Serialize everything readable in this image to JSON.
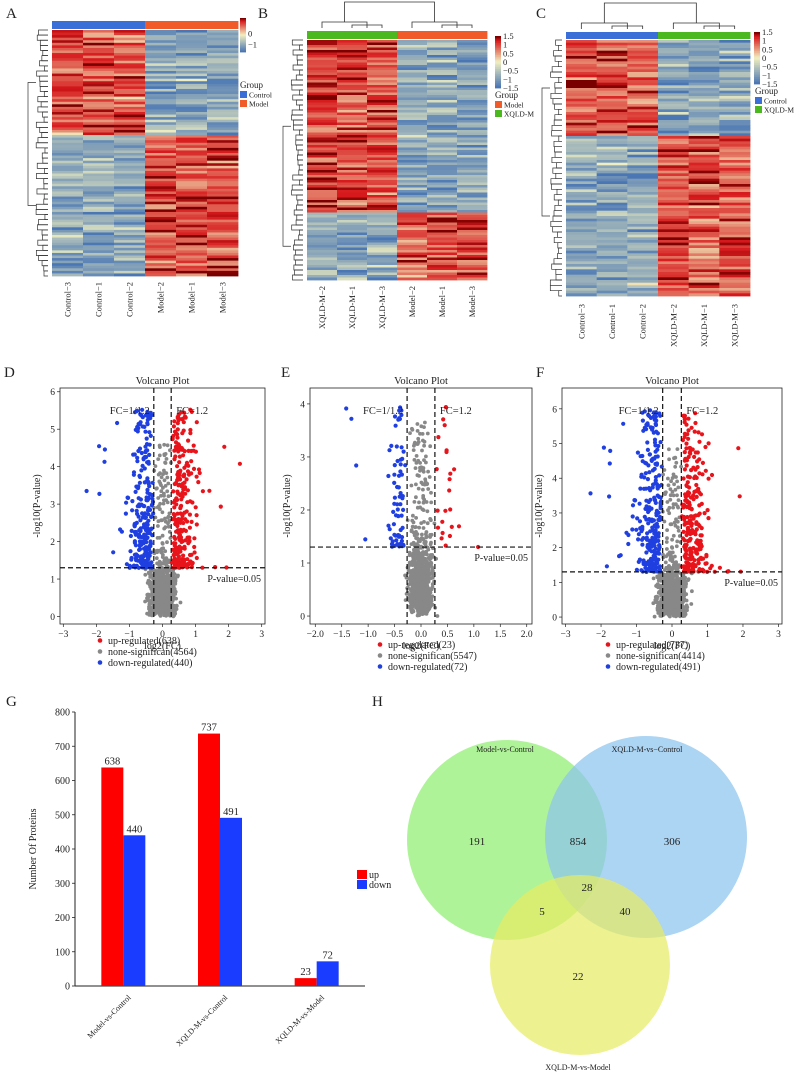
{
  "colors": {
    "heat_low": "#4a77b4",
    "heat_mid": "#f2f0c0",
    "heat_high": "#d7191c",
    "heat_max": "#7a0000",
    "control": "#3b6fd8",
    "model": "#f15a29",
    "xqld": "#4cb81f",
    "up": "#e8141b",
    "none": "#888888",
    "down": "#1f3fe0",
    "bar_up": "#ff0000",
    "bar_down": "#1a3cff",
    "venn_a": "#90ee70",
    "venn_b": "#8cc3ee",
    "venn_c": "#e6ec64"
  },
  "panels": {
    "A": {
      "letter": "A"
    },
    "B": {
      "letter": "B"
    },
    "C": {
      "letter": "C"
    },
    "D": {
      "letter": "D"
    },
    "E": {
      "letter": "E"
    },
    "F": {
      "letter": "F"
    },
    "G": {
      "letter": "G"
    },
    "H": {
      "letter": "H"
    }
  },
  "chart_data": [
    {
      "panel": "A",
      "type": "heatmap",
      "samples": [
        "Control−3",
        "Control−1",
        "Control−2",
        "Model−2",
        "Model−1",
        "Model−3"
      ],
      "groups": [
        "Control",
        "Control",
        "Control",
        "Model",
        "Model",
        "Model"
      ],
      "scale_ticks": [
        "0",
        "−1"
      ],
      "legend_title": "Group",
      "legend_entries": [
        {
          "label": "Control",
          "color": "control"
        },
        {
          "label": "Model",
          "color": "model"
        }
      ],
      "split": 0.43
    },
    {
      "panel": "B",
      "type": "heatmap",
      "samples": [
        "XQLD-M−2",
        "XQLD-M−1",
        "XQLD-M−3",
        "Model−2",
        "Model−1",
        "Model−3"
      ],
      "groups": [
        "XQLD",
        "XQLD",
        "XQLD",
        "Model",
        "Model",
        "Model"
      ],
      "scale_ticks": [
        "1.5",
        "1",
        "0.5",
        "0",
        "−0.5",
        "−1",
        "−1.5"
      ],
      "legend_title": "Group",
      "legend_entries": [
        {
          "label": "Model",
          "color": "model"
        },
        {
          "label": "XQLD-M",
          "color": "xqld"
        }
      ],
      "split": 0.72
    },
    {
      "panel": "C",
      "type": "heatmap",
      "samples": [
        "Control−3",
        "Control−1",
        "Control−2",
        "XQLD-M−2",
        "XQLD-M−1",
        "XQLD-M−3"
      ],
      "groups": [
        "Control",
        "Control",
        "Control",
        "XQLD",
        "XQLD",
        "XQLD"
      ],
      "scale_ticks": [
        "1.5",
        "1",
        "0.5",
        "0",
        "−0.5",
        "−1",
        "−1.5"
      ],
      "legend_title": "Group",
      "legend_entries": [
        {
          "label": "Control",
          "color": "control"
        },
        {
          "label": "XQLD-M",
          "color": "xqld"
        }
      ],
      "split": 0.38
    },
    {
      "panel": "D",
      "type": "scatter",
      "title": "Volcano Plot",
      "xlabel": "log2(FC)",
      "ylabel": "-log10(P-value)",
      "xlim": [
        -3.1,
        3.1
      ],
      "ylim": [
        -0.2,
        6.1
      ],
      "xticks": [
        -3,
        -2,
        -1,
        0,
        1,
        2,
        3
      ],
      "yticks": [
        0,
        1,
        2,
        3,
        4,
        5,
        6
      ],
      "fc_lines": [
        -0.263,
        0.263
      ],
      "p_line": 1.301,
      "fc_low_label": "FC=1/1.2",
      "fc_high_label": "FC=1.2",
      "p_label": "P-value=0.05",
      "series": [
        {
          "name": "up-regulated",
          "count": 638
        },
        {
          "name": "none-significan",
          "count": 4564
        },
        {
          "name": "down-regulated",
          "count": 440
        }
      ],
      "legend_labels": [
        "up-regulated(638)",
        "none-significan(4564)",
        "down-regulated(440)"
      ],
      "spread": 1.0
    },
    {
      "panel": "E",
      "type": "scatter",
      "title": "Volcano Plot",
      "xlabel": "log2(FC)",
      "ylabel": "-log10(P-value)",
      "xlim": [
        -2.1,
        2.1
      ],
      "ylim": [
        -0.15,
        4.3
      ],
      "xticks": [
        -2.0,
        -1.5,
        -1.0,
        -0.5,
        0.0,
        0.5,
        1.0,
        1.5,
        2.0
      ],
      "xtick_labels": [
        "−2.0",
        "−1.5",
        "−1.0",
        "−0.5",
        "0.0",
        "0.5",
        "1.0",
        "1.5",
        "2.0"
      ],
      "yticks": [
        0,
        1,
        2,
        3,
        4
      ],
      "fc_lines": [
        -0.263,
        0.263
      ],
      "p_line": 1.301,
      "fc_low_label": "FC=1/1.2",
      "fc_high_label": "FC=1.2",
      "p_label": "P-value=0.05",
      "series": [
        {
          "name": "up-regulated",
          "count": 23
        },
        {
          "name": "none-significan",
          "count": 5547
        },
        {
          "name": "down-regulated",
          "count": 72
        }
      ],
      "legend_labels": [
        "up-regulated(23)",
        "none-significan(5547)",
        "down-regulated(72)"
      ],
      "spread": 0.55
    },
    {
      "panel": "F",
      "type": "scatter",
      "title": "Volcano Plot",
      "xlabel": "log2(FC)",
      "ylabel": "-log10(P-value)",
      "xlim": [
        -3.1,
        3.1
      ],
      "ylim": [
        -0.2,
        6.6
      ],
      "xticks": [
        -3,
        -2,
        -1,
        0,
        1,
        2,
        3
      ],
      "yticks": [
        0,
        1,
        2,
        3,
        4,
        5,
        6
      ],
      "fc_lines": [
        -0.263,
        0.263
      ],
      "p_line": 1.301,
      "fc_low_label": "FC=1/1.2",
      "fc_high_label": "FC=1.2",
      "p_label": "P-value=0.05",
      "series": [
        {
          "name": "up-regulated",
          "count": 737
        },
        {
          "name": "none-significan",
          "count": 4414
        },
        {
          "name": "down-regulated",
          "count": 491
        }
      ],
      "legend_labels": [
        "up-regulated(737)",
        "none-significan(4414)",
        "down-regulated(491)"
      ],
      "spread": 1.0
    },
    {
      "panel": "G",
      "type": "bar",
      "categories": [
        "Model-vs-Control",
        "XQLD-M-vs-Control",
        "XQLD-M-vs-Model"
      ],
      "series": [
        {
          "name": "up",
          "values": [
            638,
            737,
            23
          ]
        },
        {
          "name": "down",
          "values": [
            440,
            491,
            72
          ]
        }
      ],
      "ylabel": "Number Of Proteins",
      "ylim": [
        0,
        800
      ],
      "yticks": [
        0,
        100,
        200,
        300,
        400,
        500,
        600,
        700,
        800
      ]
    },
    {
      "panel": "H",
      "type": "venn",
      "sets": [
        "Model-vs-Control",
        "XQLD-M-vs−Control",
        "XQLD-M-vs-Model"
      ],
      "regions": [
        {
          "sets": [
            "Model-vs-Control"
          ],
          "value": 191
        },
        {
          "sets": [
            "XQLD-M-vs−Control"
          ],
          "value": 306
        },
        {
          "sets": [
            "XQLD-M-vs-Model"
          ],
          "value": 22
        },
        {
          "sets": [
            "Model-vs-Control",
            "XQLD-M-vs−Control"
          ],
          "value": 854
        },
        {
          "sets": [
            "Model-vs-Control",
            "XQLD-M-vs-Model"
          ],
          "value": 5
        },
        {
          "sets": [
            "XQLD-M-vs−Control",
            "XQLD-M-vs-Model"
          ],
          "value": 40
        },
        {
          "sets": [
            "Model-vs-Control",
            "XQLD-M-vs−Control",
            "XQLD-M-vs-Model"
          ],
          "value": 28
        }
      ]
    }
  ]
}
